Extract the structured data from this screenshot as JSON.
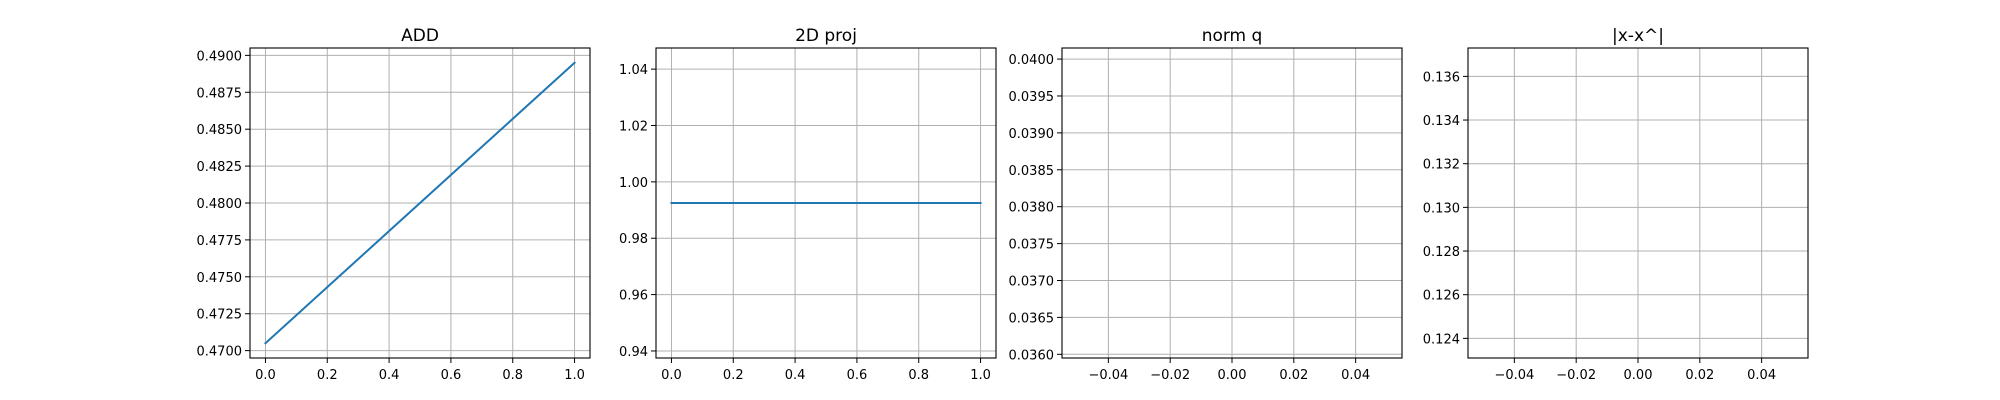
{
  "chart_data": [
    {
      "type": "line",
      "title": "ADD",
      "xlabel": "",
      "ylabel": "",
      "xlim": [
        -0.05,
        1.05
      ],
      "ylim": [
        0.4695,
        0.4905
      ],
      "xticks": [
        0.0,
        0.2,
        0.4,
        0.6,
        0.8,
        1.0
      ],
      "xtick_labels": [
        "0.0",
        "0.2",
        "0.4",
        "0.6",
        "0.8",
        "1.0"
      ],
      "yticks": [
        0.47,
        0.4725,
        0.475,
        0.4775,
        0.48,
        0.4825,
        0.485,
        0.4875,
        0.49
      ],
      "ytick_labels": [
        "0.4700",
        "0.4725",
        "0.4750",
        "0.4775",
        "0.4800",
        "0.4825",
        "0.4850",
        "0.4875",
        "0.4900"
      ],
      "grid": true,
      "series": [
        {
          "x": [
            0.0,
            1.0
          ],
          "y": [
            0.4705,
            0.4895
          ],
          "color": "#1f77b4"
        }
      ]
    },
    {
      "type": "line",
      "title": "2D proj",
      "xlabel": "",
      "ylabel": "",
      "xlim": [
        -0.05,
        1.05
      ],
      "ylim": [
        0.9375,
        1.0475
      ],
      "xticks": [
        0.0,
        0.2,
        0.4,
        0.6,
        0.8,
        1.0
      ],
      "xtick_labels": [
        "0.0",
        "0.2",
        "0.4",
        "0.6",
        "0.8",
        "1.0"
      ],
      "yticks": [
        0.94,
        0.96,
        0.98,
        1.0,
        1.02,
        1.04
      ],
      "ytick_labels": [
        "0.94",
        "0.96",
        "0.98",
        "1.00",
        "1.02",
        "1.04"
      ],
      "grid": true,
      "series": [
        {
          "x": [
            0.0,
            1.0
          ],
          "y": [
            0.9925,
            0.9925
          ],
          "color": "#1f77b4"
        }
      ]
    },
    {
      "type": "line",
      "title": "norm q",
      "xlabel": "",
      "ylabel": "",
      "xlim": [
        -0.055,
        0.055
      ],
      "ylim": [
        0.03595,
        0.04015
      ],
      "xticks": [
        -0.04,
        -0.02,
        0.0,
        0.02,
        0.04
      ],
      "xtick_labels": [
        "−0.04",
        "−0.02",
        "0.00",
        "0.02",
        "0.04"
      ],
      "yticks": [
        0.036,
        0.0365,
        0.037,
        0.0375,
        0.038,
        0.0385,
        0.039,
        0.0395,
        0.04
      ],
      "ytick_labels": [
        "0.0360",
        "0.0365",
        "0.0370",
        "0.0375",
        "0.0380",
        "0.0385",
        "0.0390",
        "0.0395",
        "0.0400"
      ],
      "grid": true,
      "series": []
    },
    {
      "type": "line",
      "title": "|x-x^|",
      "xlabel": "",
      "ylabel": "",
      "xlim": [
        -0.055,
        0.055
      ],
      "ylim": [
        0.1231,
        0.1373
      ],
      "xticks": [
        -0.04,
        -0.02,
        0.0,
        0.02,
        0.04
      ],
      "xtick_labels": [
        "−0.04",
        "−0.02",
        "0.00",
        "0.02",
        "0.04"
      ],
      "yticks": [
        0.124,
        0.126,
        0.128,
        0.13,
        0.132,
        0.134,
        0.136
      ],
      "ytick_labels": [
        "0.124",
        "0.126",
        "0.128",
        "0.130",
        "0.132",
        "0.134",
        "0.136"
      ],
      "grid": true,
      "series": []
    }
  ]
}
